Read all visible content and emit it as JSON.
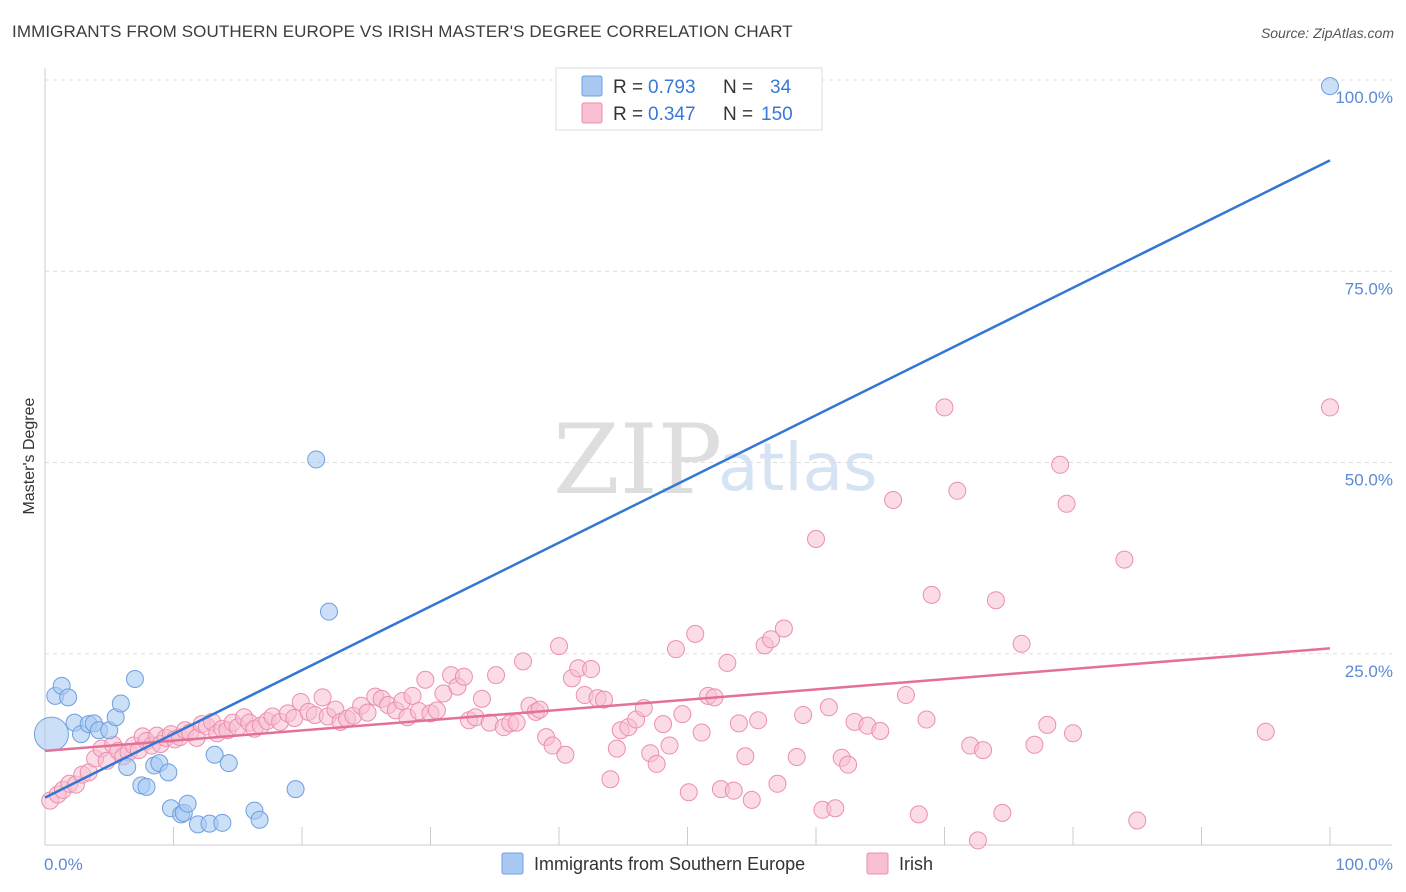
{
  "title": "IMMIGRANTS FROM SOUTHERN EUROPE VS IRISH MASTER'S DEGREE CORRELATION CHART",
  "source": "Source: ZipAtlas.com",
  "watermark": {
    "zip": "ZIP",
    "atlas": "atlas"
  },
  "colors": {
    "blue_fill": "#a9c9f2",
    "blue_stroke": "#6f9fe0",
    "blue_line": "#3377d2",
    "pink_fill": "#f7bfd1",
    "pink_stroke": "#ec8fad",
    "pink_line": "#e4709a",
    "tick": "#5b8ad6",
    "grid": "#dddddd"
  },
  "legend": {
    "rows": [
      {
        "r_label": "R = ",
        "r_value": "0.793",
        "n_label": "N = ",
        "n_value": "34"
      },
      {
        "r_label": "R = ",
        "r_value": "0.347",
        "n_label": "N = ",
        "n_value": "150"
      }
    ]
  },
  "bottom_legend": [
    "Immigrants from Southern Europe",
    "Irish"
  ],
  "chart_data": {
    "type": "scatter",
    "title": "IMMIGRANTS FROM SOUTHERN EUROPE VS IRISH MASTER'S DEGREE CORRELATION CHART",
    "xlabel": "",
    "ylabel": "Master's Degree",
    "xlim": [
      0,
      100
    ],
    "ylim": [
      0,
      100
    ],
    "x_ticks": [
      {
        "value": 0,
        "label": "0.0%"
      },
      {
        "value": 100,
        "label": "100.0%"
      }
    ],
    "y_ticks": [
      {
        "value": 25,
        "label": "25.0%"
      },
      {
        "value": 50,
        "label": "50.0%"
      },
      {
        "value": 75,
        "label": "75.0%"
      },
      {
        "value": 100,
        "label": "100.0%"
      }
    ],
    "grid": true,
    "legend_position": "top-center",
    "series": [
      {
        "name": "Immigrants from Southern Europe",
        "color": "#a9c9f2",
        "trend": {
          "x0": 0,
          "y0": 6.2,
          "x1": 100,
          "y1": 89.5
        },
        "points": [
          [
            0.5,
            14.5,
            2.0
          ],
          [
            0.8,
            19.5,
            1.0
          ],
          [
            1.3,
            20.8,
            1.0
          ],
          [
            1.8,
            19.3,
            1.0
          ],
          [
            2.3,
            16.0,
            1.0
          ],
          [
            2.8,
            14.5,
            1.0
          ],
          [
            3.4,
            15.8,
            1.0
          ],
          [
            3.8,
            15.9,
            1.0
          ],
          [
            4.2,
            15.0,
            1.0
          ],
          [
            5.0,
            15.0,
            1.0
          ],
          [
            5.5,
            16.7,
            1.0
          ],
          [
            5.9,
            18.5,
            1.0
          ],
          [
            6.4,
            10.2,
            1.0
          ],
          [
            7.0,
            21.7,
            1.0
          ],
          [
            7.5,
            7.8,
            1.0
          ],
          [
            7.9,
            7.6,
            1.0
          ],
          [
            8.5,
            10.4,
            1.0
          ],
          [
            8.9,
            10.7,
            1.0
          ],
          [
            9.6,
            9.5,
            1.0
          ],
          [
            9.8,
            4.8,
            1.0
          ],
          [
            10.6,
            4.0,
            1.0
          ],
          [
            10.8,
            4.2,
            1.0
          ],
          [
            11.1,
            5.4,
            1.0
          ],
          [
            11.9,
            2.7,
            1.0
          ],
          [
            12.8,
            2.8,
            1.0
          ],
          [
            13.2,
            11.8,
            1.0
          ],
          [
            13.8,
            2.9,
            1.0
          ],
          [
            14.3,
            10.7,
            1.0
          ],
          [
            16.3,
            4.5,
            1.0
          ],
          [
            16.7,
            3.3,
            1.0
          ],
          [
            19.5,
            7.3,
            1.0
          ],
          [
            21.1,
            50.4,
            1.0
          ],
          [
            22.1,
            30.5,
            1.0
          ],
          [
            100.0,
            99.2,
            1.0
          ]
        ]
      },
      {
        "name": "Irish",
        "color": "#f7bfd1",
        "trend": {
          "x0": 0,
          "y0": 12.3,
          "x1": 100,
          "y1": 25.7
        },
        "points": [
          [
            0.4,
            5.8
          ],
          [
            1.0,
            6.6
          ],
          [
            1.4,
            7.2
          ],
          [
            1.9,
            8.0
          ],
          [
            2.4,
            7.9
          ],
          [
            2.9,
            9.2
          ],
          [
            3.4,
            9.5
          ],
          [
            3.9,
            11.3
          ],
          [
            4.4,
            12.6
          ],
          [
            4.8,
            11.0
          ],
          [
            5.3,
            13.1
          ],
          [
            5.7,
            12.3
          ],
          [
            6.1,
            11.6
          ],
          [
            6.5,
            12.1
          ],
          [
            6.9,
            13.0
          ],
          [
            7.3,
            12.4
          ],
          [
            7.6,
            14.2
          ],
          [
            7.9,
            13.6
          ],
          [
            8.3,
            13.0
          ],
          [
            8.7,
            14.3
          ],
          [
            9.0,
            13.2
          ],
          [
            9.4,
            14.0
          ],
          [
            9.8,
            14.5
          ],
          [
            10.1,
            13.8
          ],
          [
            10.5,
            14.1
          ],
          [
            10.9,
            15.0
          ],
          [
            11.3,
            14.7
          ],
          [
            11.8,
            14.0
          ],
          [
            12.2,
            15.8
          ],
          [
            12.6,
            15.5
          ],
          [
            13.0,
            16.1
          ],
          [
            13.4,
            14.6
          ],
          [
            13.8,
            15.2
          ],
          [
            14.2,
            15.0
          ],
          [
            14.6,
            16.0
          ],
          [
            15.0,
            15.4
          ],
          [
            15.5,
            16.7
          ],
          [
            15.9,
            16.0
          ],
          [
            16.3,
            15.2
          ],
          [
            16.8,
            15.6
          ],
          [
            17.3,
            16.2
          ],
          [
            17.7,
            16.8
          ],
          [
            18.3,
            16.1
          ],
          [
            18.9,
            17.2
          ],
          [
            19.4,
            16.6
          ],
          [
            19.9,
            18.7
          ],
          [
            20.5,
            17.4
          ],
          [
            21.0,
            17.0
          ],
          [
            21.6,
            19.3
          ],
          [
            22.0,
            16.8
          ],
          [
            22.6,
            17.7
          ],
          [
            23.0,
            16.1
          ],
          [
            23.5,
            16.5
          ],
          [
            24.0,
            16.9
          ],
          [
            24.6,
            18.2
          ],
          [
            25.1,
            17.3
          ],
          [
            25.7,
            19.4
          ],
          [
            26.2,
            19.1
          ],
          [
            26.7,
            18.3
          ],
          [
            27.3,
            17.6
          ],
          [
            27.8,
            18.8
          ],
          [
            28.2,
            16.7
          ],
          [
            28.6,
            19.5
          ],
          [
            29.1,
            17.5
          ],
          [
            29.6,
            21.6
          ],
          [
            30.0,
            17.2
          ],
          [
            30.5,
            17.6
          ],
          [
            31.0,
            19.8
          ],
          [
            31.6,
            22.2
          ],
          [
            32.1,
            20.7
          ],
          [
            32.6,
            22.0
          ],
          [
            33.0,
            16.3
          ],
          [
            33.5,
            16.7
          ],
          [
            34.0,
            19.1
          ],
          [
            34.6,
            16.0
          ],
          [
            35.1,
            22.2
          ],
          [
            35.7,
            15.4
          ],
          [
            36.2,
            15.9
          ],
          [
            36.7,
            16.0
          ],
          [
            37.2,
            24.0
          ],
          [
            37.7,
            18.2
          ],
          [
            38.2,
            17.4
          ],
          [
            38.5,
            17.7
          ],
          [
            39.0,
            14.1
          ],
          [
            39.5,
            13.0
          ],
          [
            40.0,
            26.0
          ],
          [
            40.5,
            11.8
          ],
          [
            41.0,
            21.8
          ],
          [
            41.5,
            23.1
          ],
          [
            42.0,
            19.6
          ],
          [
            42.5,
            23.0
          ],
          [
            43.0,
            19.2
          ],
          [
            43.5,
            19.0
          ],
          [
            44.0,
            8.6
          ],
          [
            44.5,
            12.6
          ],
          [
            44.8,
            15.0
          ],
          [
            45.4,
            15.4
          ],
          [
            46.0,
            16.4
          ],
          [
            46.6,
            17.9
          ],
          [
            47.1,
            12.0
          ],
          [
            47.6,
            10.6
          ],
          [
            48.1,
            15.8
          ],
          [
            48.6,
            13.0
          ],
          [
            49.1,
            25.6
          ],
          [
            49.6,
            17.1
          ],
          [
            50.1,
            6.9
          ],
          [
            50.6,
            27.6
          ],
          [
            51.1,
            14.7
          ],
          [
            51.6,
            19.5
          ],
          [
            52.1,
            19.3
          ],
          [
            52.6,
            7.3
          ],
          [
            53.1,
            23.8
          ],
          [
            53.6,
            7.1
          ],
          [
            54.0,
            15.9
          ],
          [
            54.5,
            11.6
          ],
          [
            55.0,
            5.9
          ],
          [
            55.5,
            16.3
          ],
          [
            56.0,
            26.1
          ],
          [
            56.5,
            26.9
          ],
          [
            57.0,
            8.0
          ],
          [
            57.5,
            28.3
          ],
          [
            58.5,
            11.5
          ],
          [
            59.0,
            17.0
          ],
          [
            60.0,
            40.0
          ],
          [
            60.5,
            4.6
          ],
          [
            61.0,
            18.0
          ],
          [
            61.5,
            4.8
          ],
          [
            62.0,
            11.4
          ],
          [
            62.5,
            10.5
          ],
          [
            63.0,
            16.1
          ],
          [
            64.0,
            15.6
          ],
          [
            65.0,
            14.9
          ],
          [
            66.0,
            45.1
          ],
          [
            67.0,
            19.6
          ],
          [
            68.0,
            4.0
          ],
          [
            68.6,
            16.4
          ],
          [
            69.0,
            32.7
          ],
          [
            70.0,
            57.2
          ],
          [
            71.0,
            46.3
          ],
          [
            72.0,
            13.0
          ],
          [
            72.6,
            0.6
          ],
          [
            73.0,
            12.4
          ],
          [
            74.0,
            32.0
          ],
          [
            74.5,
            4.2
          ],
          [
            76.0,
            26.3
          ],
          [
            77.0,
            13.1
          ],
          [
            78.0,
            15.7
          ],
          [
            79.0,
            49.7
          ],
          [
            79.5,
            44.6
          ],
          [
            80.0,
            14.6
          ],
          [
            84.0,
            37.3
          ],
          [
            85.0,
            3.2
          ],
          [
            95.0,
            14.8
          ],
          [
            100.0,
            57.2
          ]
        ]
      }
    ]
  }
}
